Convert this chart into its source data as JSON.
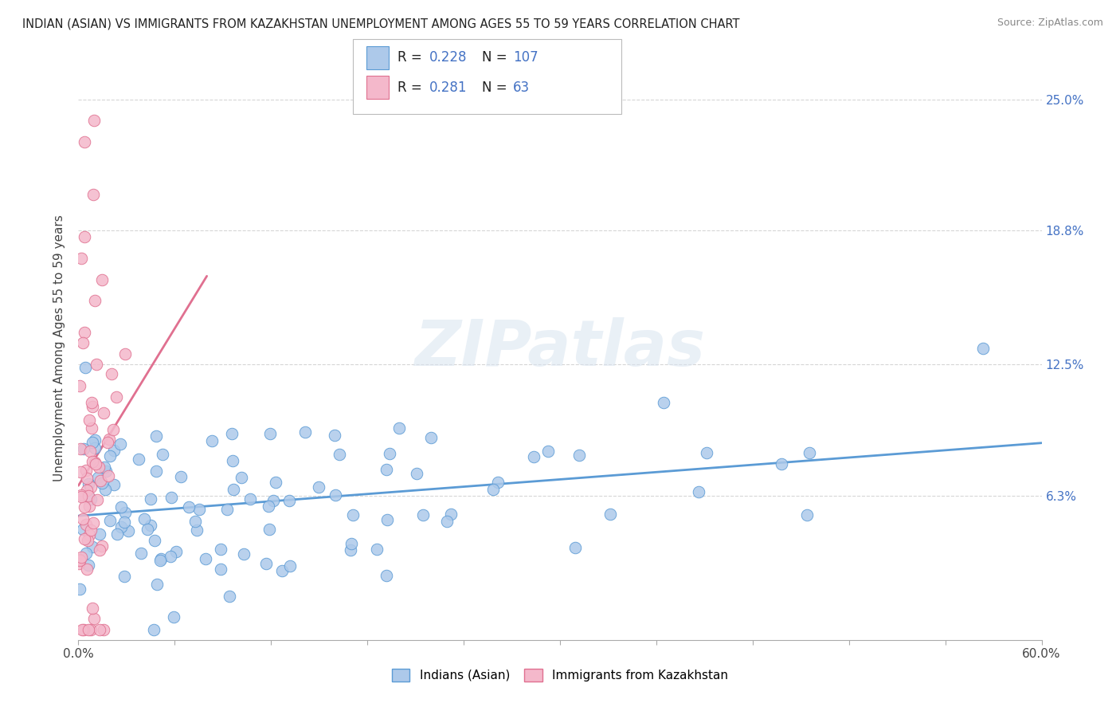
{
  "title": "INDIAN (ASIAN) VS IMMIGRANTS FROM KAZAKHSTAN UNEMPLOYMENT AMONG AGES 55 TO 59 YEARS CORRELATION CHART",
  "source": "Source: ZipAtlas.com",
  "ylabel": "Unemployment Among Ages 55 to 59 years",
  "xlim": [
    0.0,
    0.6
  ],
  "ylim": [
    -0.005,
    0.27
  ],
  "xticks": [
    0.0,
    0.06,
    0.12,
    0.18,
    0.24,
    0.3,
    0.36,
    0.42,
    0.48,
    0.54,
    0.6
  ],
  "xticklabels": [
    "0.0%",
    "",
    "",
    "",
    "",
    "",
    "",
    "",
    "",
    "",
    "60.0%"
  ],
  "ytick_positions": [
    0.063,
    0.125,
    0.188,
    0.25
  ],
  "ytick_labels": [
    "6.3%",
    "12.5%",
    "18.8%",
    "25.0%"
  ],
  "legend_labels": [
    "Indians (Asian)",
    "Immigrants from Kazakhstan"
  ],
  "series1_color": "#adc9ea",
  "series1_edge": "#5b9bd5",
  "series2_color": "#f4b8cb",
  "series2_edge": "#e07090",
  "trend1_color": "#5b9bd5",
  "trend2_color": "#e07090",
  "R1": 0.228,
  "N1": 107,
  "R2": 0.281,
  "N2": 63,
  "legend_R_color": "#4472c4",
  "watermark": "ZIPatlas",
  "background_color": "#ffffff",
  "grid_color": "#cccccc",
  "title_fontsize": 10.5,
  "seed": 42
}
